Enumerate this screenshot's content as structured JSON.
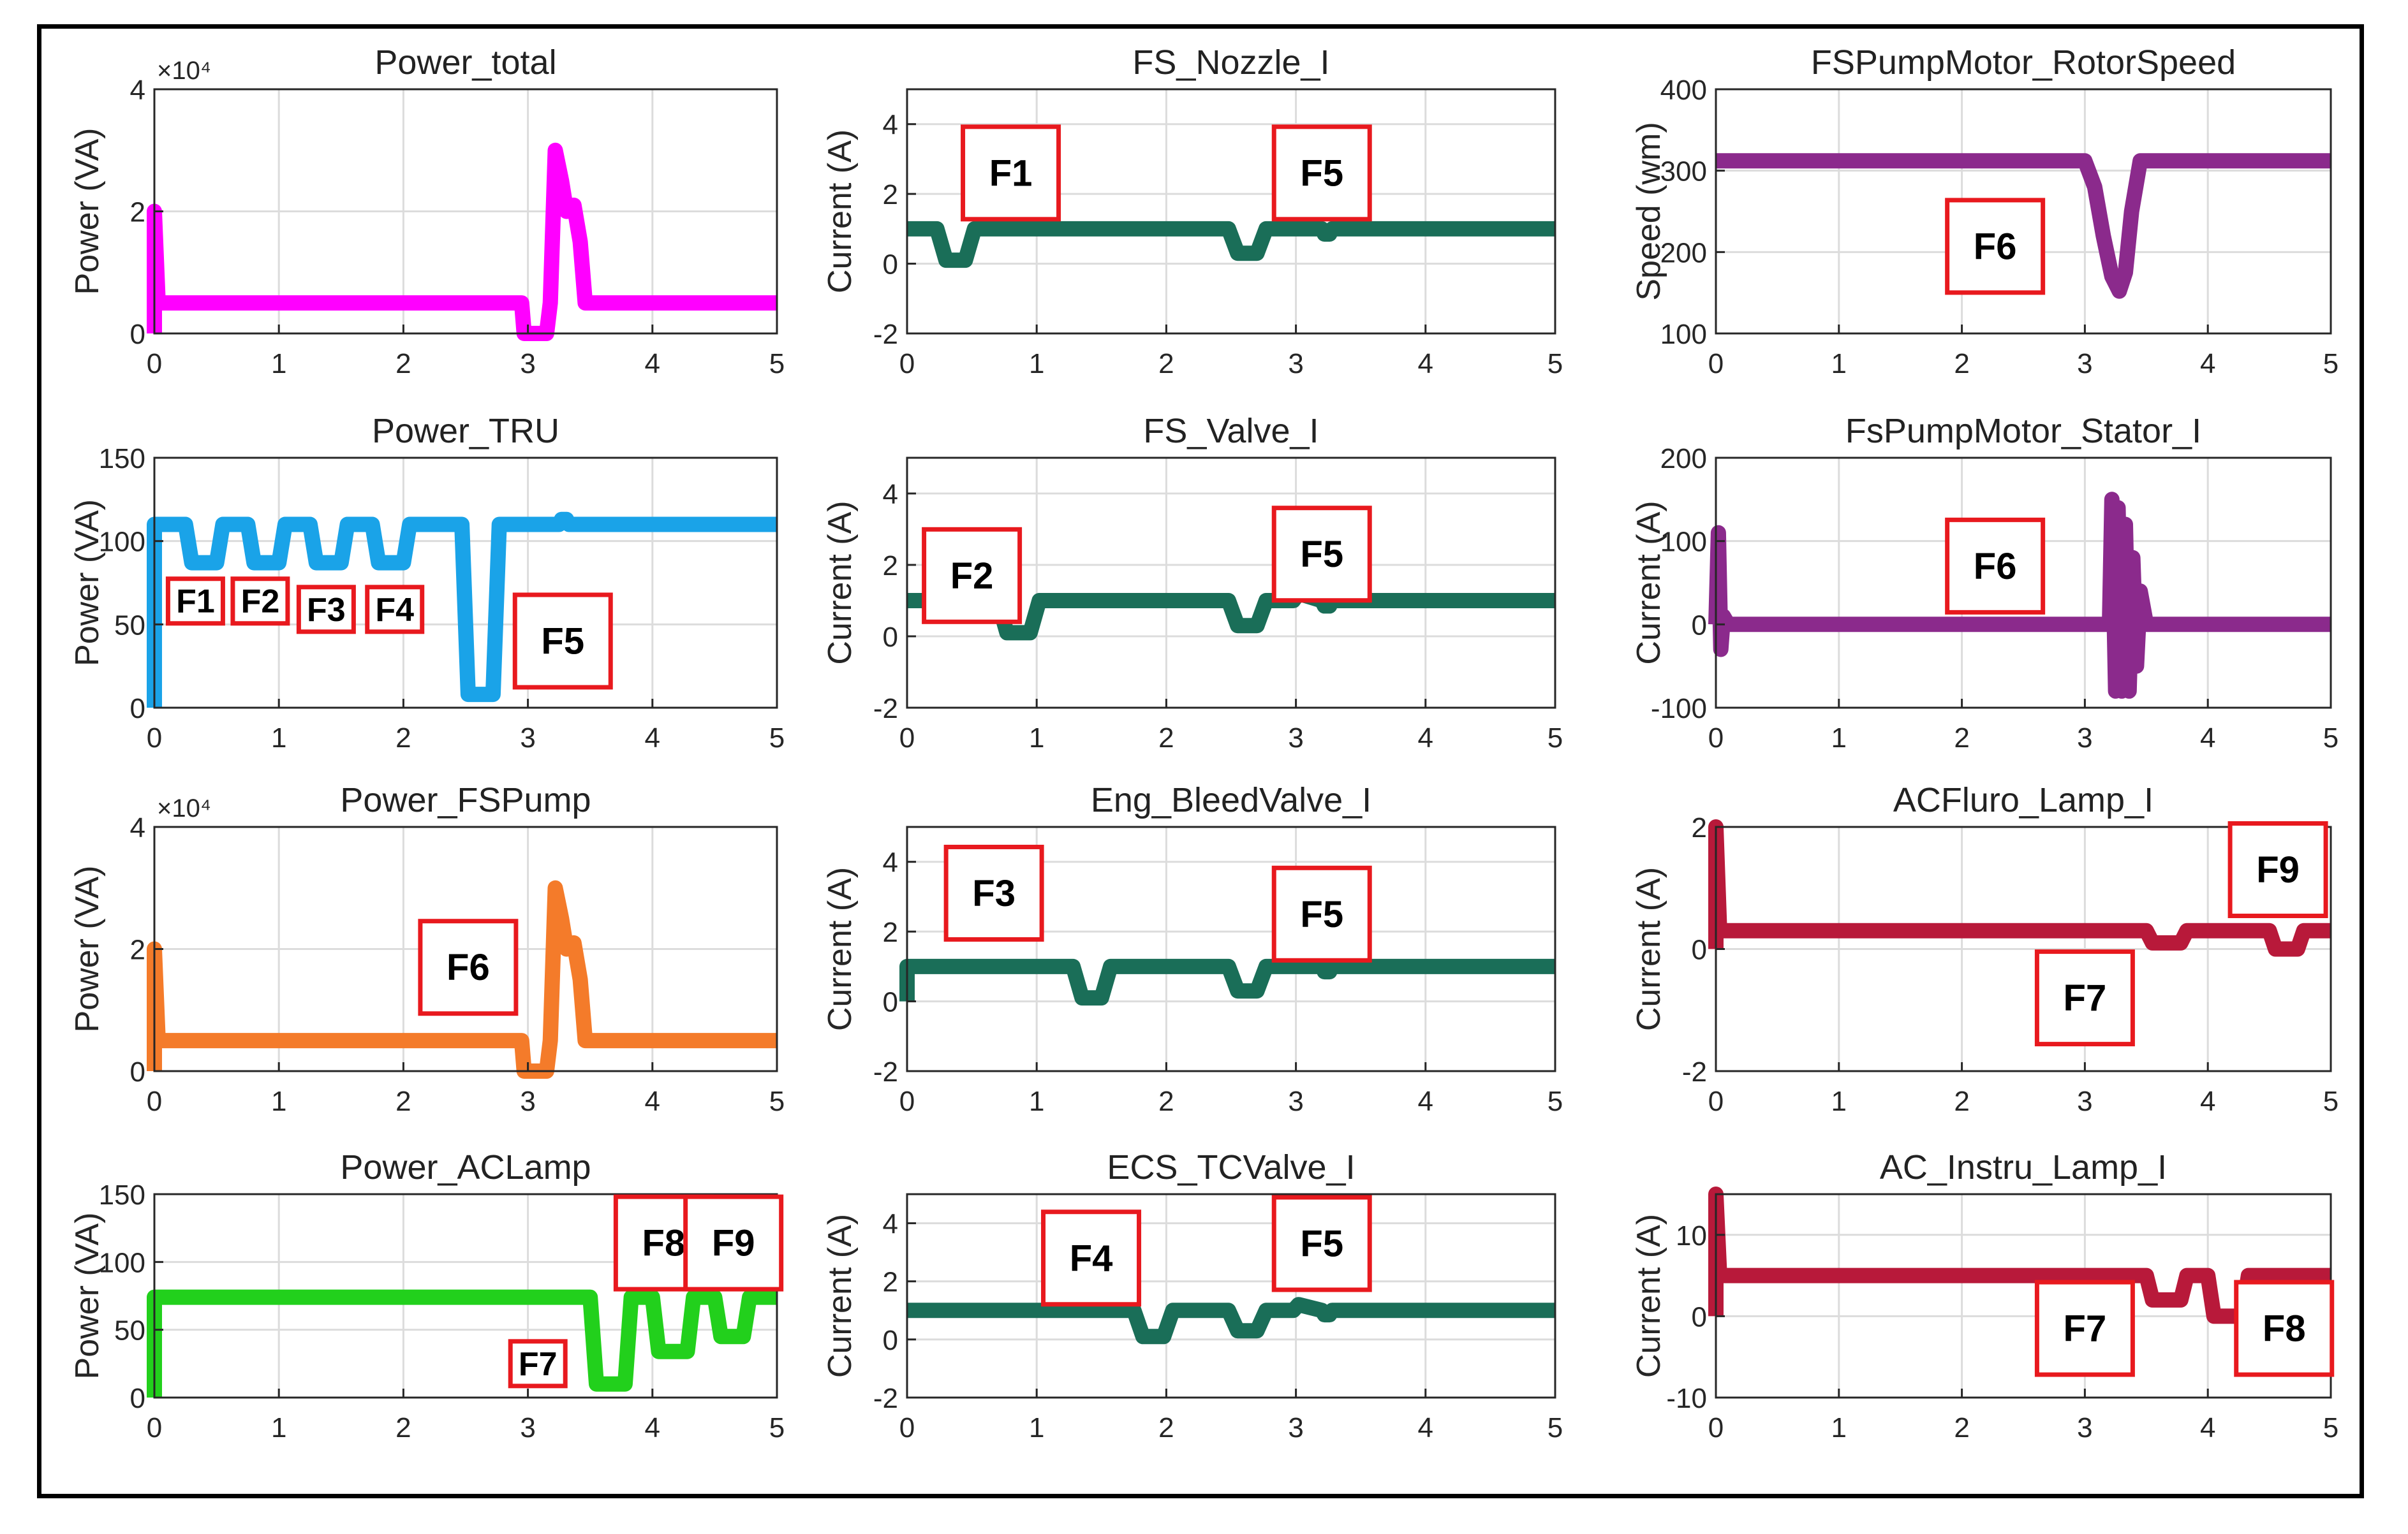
{
  "chart_data": [
    {
      "type": "line",
      "title": "Power_total",
      "ylabel": "Power (VA)",
      "xlim": [
        0,
        5
      ],
      "ylim": [
        0,
        4
      ],
      "xticks": [
        0,
        1,
        2,
        3,
        4,
        5
      ],
      "yticks": [
        0,
        2,
        4
      ],
      "ytick_labels": [
        "0",
        "2",
        "4"
      ],
      "exponent": "×10⁴",
      "color": "#ff00ff",
      "grid": true,
      "series": [
        {
          "name": "Power_total",
          "x": [
            0,
            0,
            0.03,
            2.95,
            2.97,
            3.15,
            3.18,
            3.22,
            3.27,
            3.31,
            3.37,
            3.42,
            3.46,
            3.5,
            5
          ],
          "y": [
            0,
            2,
            0.5,
            0.5,
            0,
            0,
            0.5,
            3,
            2.5,
            2,
            2.1,
            1.5,
            0.5,
            0.5,
            0.5
          ]
        }
      ],
      "annotations": []
    },
    {
      "type": "line",
      "title": "FS_Nozzle_I",
      "ylabel": "Current (A)",
      "xlim": [
        0,
        5
      ],
      "ylim": [
        -2,
        5
      ],
      "xticks": [
        0,
        1,
        2,
        3,
        4,
        5
      ],
      "yticks": [
        -2,
        0,
        2,
        4
      ],
      "ytick_labels": [
        "-2",
        "0",
        "2",
        "4"
      ],
      "color": "#1a6e58",
      "grid": true,
      "series": [
        {
          "name": "FS_Nozzle_I",
          "x": [
            0,
            0.23,
            0.3,
            0.45,
            0.52,
            2.48,
            2.55,
            2.7,
            2.77,
            3.2,
            3.22,
            3.26,
            3.28,
            5
          ],
          "y": [
            1,
            1,
            0.1,
            0.1,
            1,
            1,
            0.3,
            0.3,
            1,
            1,
            0.85,
            0.85,
            1,
            1
          ]
        }
      ],
      "annotations": [
        {
          "text": "F1",
          "x": 0.8,
          "y": 2.6
        },
        {
          "text": "F5",
          "x": 3.2,
          "y": 2.6
        }
      ]
    },
    {
      "type": "line",
      "title": "FSPumpMotor_RotorSpeed",
      "ylabel": "Speed (wm)",
      "xlim": [
        0,
        5
      ],
      "ylim": [
        100,
        400
      ],
      "xticks": [
        0,
        1,
        2,
        3,
        4,
        5
      ],
      "yticks": [
        100,
        200,
        300,
        400
      ],
      "ytick_labels": [
        "100",
        "200",
        "300",
        "400"
      ],
      "color": "#8b2a8c",
      "grid": true,
      "series": [
        {
          "name": "FSPumpMotor_RotorSpeed",
          "x": [
            0,
            3,
            3.08,
            3.15,
            3.22,
            3.28,
            3.33,
            3.38,
            3.45,
            5
          ],
          "y": [
            312,
            312,
            280,
            220,
            170,
            152,
            175,
            250,
            312,
            312
          ]
        }
      ],
      "annotations": [
        {
          "text": "F6",
          "x": 2.27,
          "y": 207
        }
      ]
    },
    {
      "type": "line",
      "title": "Power_TRU",
      "ylabel": "Power (VA)",
      "xlim": [
        0,
        5
      ],
      "ylim": [
        0,
        150
      ],
      "xticks": [
        0,
        1,
        2,
        3,
        4,
        5
      ],
      "yticks": [
        0,
        50,
        100,
        150
      ],
      "ytick_labels": [
        "0",
        "50",
        "100",
        "150"
      ],
      "color": "#1aa3e8",
      "grid": true,
      "series": [
        {
          "name": "Power_TRU",
          "x": [
            0,
            0,
            0.25,
            0.3,
            0.5,
            0.55,
            0.75,
            0.8,
            1.0,
            1.05,
            1.25,
            1.3,
            1.5,
            1.55,
            1.75,
            1.8,
            2.0,
            2.05,
            2.47,
            2.52,
            2.72,
            2.77,
            3.25,
            3.27,
            3.31,
            3.33,
            5
          ],
          "y": [
            0,
            110,
            110,
            87,
            87,
            110,
            110,
            87,
            87,
            110,
            110,
            87,
            87,
            110,
            110,
            87,
            87,
            110,
            110,
            8,
            8,
            110,
            110,
            113,
            113,
            110,
            110
          ]
        }
      ],
      "annotations": [
        {
          "text": "F1",
          "x": 0.33,
          "y": 64
        },
        {
          "text": "F2",
          "x": 0.85,
          "y": 64
        },
        {
          "text": "F3",
          "x": 1.38,
          "y": 59
        },
        {
          "text": "F4",
          "x": 1.93,
          "y": 59
        },
        {
          "text": "F5",
          "x": 3.28,
          "y": 40
        }
      ]
    },
    {
      "type": "line",
      "title": "FS_Valve_I",
      "ylabel": "Current (A)",
      "xlim": [
        0,
        5
      ],
      "ylim": [
        -2,
        5
      ],
      "xticks": [
        0,
        1,
        2,
        3,
        4,
        5
      ],
      "yticks": [
        -2,
        0,
        2,
        4
      ],
      "ytick_labels": [
        "-2",
        "0",
        "2",
        "4"
      ],
      "color": "#1a6e58",
      "grid": true,
      "series": [
        {
          "name": "FS_Valve_I",
          "x": [
            0,
            0.7,
            0.77,
            0.95,
            1.02,
            2.48,
            2.55,
            2.7,
            2.77,
            2.98,
            3.02,
            3.2,
            3.22,
            3.26,
            3.28,
            5
          ],
          "y": [
            1,
            1,
            0.1,
            0.1,
            1,
            1,
            0.3,
            0.3,
            1,
            1,
            1.2,
            1,
            0.85,
            0.85,
            1,
            1
          ]
        }
      ],
      "annotations": [
        {
          "text": "F2",
          "x": 0.5,
          "y": 1.7
        },
        {
          "text": "F5",
          "x": 3.2,
          "y": 2.3
        }
      ]
    },
    {
      "type": "line",
      "title": "FsPumpMotor_Stator_I",
      "ylabel": "Current (A)",
      "xlim": [
        0,
        5
      ],
      "ylim": [
        -100,
        200
      ],
      "xticks": [
        0,
        1,
        2,
        3,
        4,
        5
      ],
      "yticks": [
        -100,
        0,
        100,
        200
      ],
      "ytick_labels": [
        "-100",
        "0",
        "100",
        "200"
      ],
      "color": "#8b2a8c",
      "grid": true,
      "series": [
        {
          "name": "FsPumpMotor_Stator_I",
          "x": [
            0,
            0.02,
            0.04,
            0.06,
            0.1,
            3.2,
            3.22,
            3.25,
            3.27,
            3.3,
            3.33,
            3.36,
            3.39,
            3.42,
            3.45,
            3.5,
            5
          ],
          "y": [
            0,
            110,
            -30,
            10,
            0,
            0,
            150,
            -80,
            140,
            -80,
            120,
            -80,
            80,
            -50,
            40,
            0,
            0
          ]
        }
      ],
      "annotations": [
        {
          "text": "F6",
          "x": 2.27,
          "y": 70
        }
      ]
    },
    {
      "type": "line",
      "title": "Power_FSPump",
      "ylabel": "Power (VA)",
      "xlim": [
        0,
        5
      ],
      "ylim": [
        0,
        4
      ],
      "xticks": [
        0,
        1,
        2,
        3,
        4,
        5
      ],
      "yticks": [
        0,
        2,
        4
      ],
      "ytick_labels": [
        "0",
        "2",
        "4"
      ],
      "exponent": "×10⁴",
      "color": "#f47b2a",
      "grid": true,
      "series": [
        {
          "name": "Power_FSPump",
          "x": [
            0,
            0,
            0.03,
            2.95,
            2.97,
            3.15,
            3.18,
            3.22,
            3.27,
            3.31,
            3.37,
            3.42,
            3.46,
            3.5,
            5
          ],
          "y": [
            0,
            2,
            0.5,
            0.5,
            0,
            0,
            0.5,
            3,
            2.5,
            2,
            2.1,
            1.5,
            0.5,
            0.5,
            0.5
          ]
        }
      ],
      "annotations": [
        {
          "text": "F6",
          "x": 2.52,
          "y": 1.7
        }
      ]
    },
    {
      "type": "line",
      "title": "Eng_BleedValve_I",
      "ylabel": "Current (A)",
      "xlim": [
        0,
        5
      ],
      "ylim": [
        -2,
        5
      ],
      "xticks": [
        0,
        1,
        2,
        3,
        4,
        5
      ],
      "yticks": [
        -2,
        0,
        2,
        4
      ],
      "ytick_labels": [
        "-2",
        "0",
        "2",
        "4"
      ],
      "color": "#1a6e58",
      "grid": true,
      "series": [
        {
          "name": "Eng_BleedValve_I",
          "x": [
            0,
            0,
            0.02,
            1.28,
            1.35,
            1.5,
            1.57,
            2.48,
            2.55,
            2.7,
            2.77,
            3.2,
            3.22,
            3.26,
            3.28,
            5
          ],
          "y": [
            0,
            1,
            1,
            1,
            0.1,
            0.1,
            1,
            1,
            0.3,
            0.3,
            1,
            1,
            0.85,
            0.85,
            1,
            1
          ]
        }
      ],
      "annotations": [
        {
          "text": "F3",
          "x": 0.67,
          "y": 3.1
        },
        {
          "text": "F5",
          "x": 3.2,
          "y": 2.5
        }
      ]
    },
    {
      "type": "line",
      "title": "ACFluro_Lamp_I",
      "ylabel": "Current (A)",
      "xlim": [
        0,
        5
      ],
      "ylim": [
        -2,
        2
      ],
      "xticks": [
        0,
        1,
        2,
        3,
        4,
        5
      ],
      "yticks": [
        -2,
        0,
        2
      ],
      "ytick_labels": [
        "-2",
        "0",
        "2"
      ],
      "color": "#b8193a",
      "grid": true,
      "series": [
        {
          "name": "ACFluro_Lamp_I",
          "x": [
            0,
            0,
            0.03,
            3.5,
            3.55,
            3.78,
            3.83,
            4.5,
            4.55,
            4.73,
            4.78,
            5
          ],
          "y": [
            0,
            2,
            0.3,
            0.3,
            0.1,
            0.1,
            0.3,
            0.3,
            0,
            0,
            0.3,
            0.3
          ]
        }
      ],
      "annotations": [
        {
          "text": "F9",
          "x": 4.57,
          "y": 1.3
        },
        {
          "text": "F7",
          "x": 3.0,
          "y": -0.8
        }
      ]
    },
    {
      "type": "line",
      "title": "Power_ACLamp",
      "ylabel": "Power (VA)",
      "xlim": [
        0,
        5
      ],
      "ylim": [
        0,
        150
      ],
      "xticks": [
        0,
        1,
        2,
        3,
        4,
        5
      ],
      "yticks": [
        0,
        50,
        100,
        150
      ],
      "ytick_labels": [
        "0",
        "50",
        "100",
        "150"
      ],
      "color": "#22d01c",
      "grid": true,
      "series": [
        {
          "name": "Power_ACLamp",
          "x": [
            0,
            0,
            0.03,
            3.5,
            3.55,
            3.78,
            3.83,
            4.0,
            4.05,
            4.28,
            4.33,
            4.5,
            4.55,
            4.73,
            4.78,
            5
          ],
          "y": [
            0,
            74,
            74,
            74,
            10,
            10,
            74,
            74,
            34,
            34,
            74,
            74,
            45,
            45,
            74,
            74
          ]
        }
      ],
      "annotations": [
        {
          "text": "F7",
          "x": 3.08,
          "y": 25
        },
        {
          "text": "F8",
          "x": 4.09,
          "y": 114
        },
        {
          "text": "F9",
          "x": 4.65,
          "y": 114
        }
      ]
    },
    {
      "type": "line",
      "title": "ECS_TCValve_I",
      "ylabel": "Current (A)",
      "xlim": [
        0,
        5
      ],
      "ylim": [
        -2,
        5
      ],
      "xticks": [
        0,
        1,
        2,
        3,
        4,
        5
      ],
      "yticks": [
        -2,
        0,
        2,
        4
      ],
      "ytick_labels": [
        "-2",
        "0",
        "2",
        "4"
      ],
      "color": "#1a6e58",
      "grid": true,
      "series": [
        {
          "name": "ECS_TCValve_I",
          "x": [
            0,
            1.75,
            1.82,
            1.98,
            2.05,
            2.48,
            2.55,
            2.7,
            2.77,
            2.98,
            3.02,
            3.2,
            3.22,
            3.26,
            3.28,
            5
          ],
          "y": [
            1,
            1,
            0.1,
            0.1,
            1,
            1,
            0.3,
            0.3,
            1,
            1,
            1.2,
            1,
            0.85,
            0.85,
            1,
            1
          ]
        }
      ],
      "annotations": [
        {
          "text": "F4",
          "x": 1.42,
          "y": 2.8
        },
        {
          "text": "F5",
          "x": 3.2,
          "y": 3.3
        }
      ]
    },
    {
      "type": "line",
      "title": "AC_Instru_Lamp_I",
      "ylabel": "Current (A)",
      "xlim": [
        0,
        5
      ],
      "ylim": [
        -10,
        15
      ],
      "xticks": [
        0,
        1,
        2,
        3,
        4,
        5
      ],
      "yticks": [
        -10,
        0,
        10
      ],
      "ytick_labels": [
        "-10",
        "0",
        "10"
      ],
      "color": "#b8193a",
      "grid": true,
      "series": [
        {
          "name": "AC_Instru_Lamp_I",
          "x": [
            0,
            0,
            0.03,
            3.5,
            3.55,
            3.78,
            3.83,
            4.0,
            4.05,
            4.28,
            4.33,
            5
          ],
          "y": [
            0,
            15,
            5,
            5,
            2,
            2,
            5,
            5,
            0,
            0,
            5,
            5
          ]
        }
      ],
      "annotations": [
        {
          "text": "F7",
          "x": 3.0,
          "y": -1.5
        },
        {
          "text": "F8",
          "x": 4.62,
          "y": -1.5
        }
      ]
    }
  ]
}
